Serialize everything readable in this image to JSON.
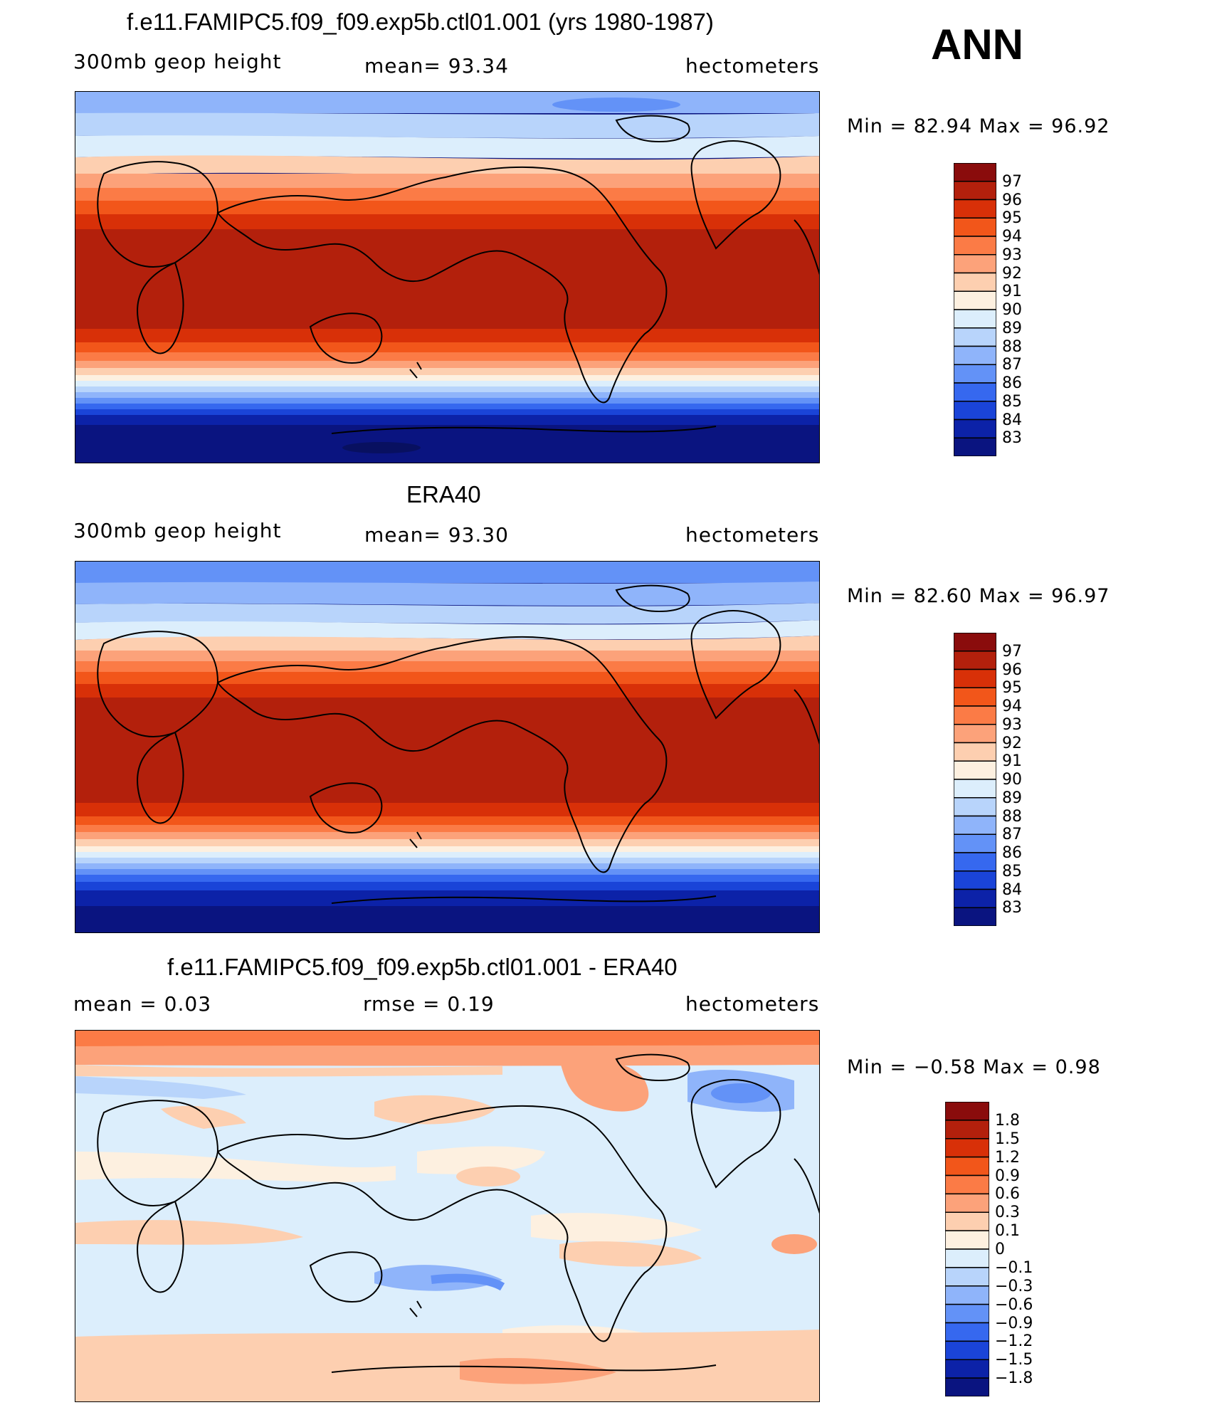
{
  "corner_label": "ANN",
  "panels": [
    {
      "title": "f.e11.FAMIPC5.f09_f09.exp5b.ctl01.001 (yrs 1980-1987)",
      "left_label": "300mb  geop  height",
      "center_label": "mean=   93.34",
      "right_label": "hectometers",
      "minmax": "Min  =    82.94  Max  =    96.92",
      "colorbar": {
        "labels": [
          "97",
          "96",
          "95",
          "94",
          "93",
          "92",
          "91",
          "90",
          "89",
          "88",
          "87",
          "86",
          "85",
          "84",
          "83"
        ],
        "colors": [
          "#8a0c0c",
          "#b3200c",
          "#d83008",
          "#f2561a",
          "#fb7b46",
          "#fca27a",
          "#fdcfb0",
          "#fdf0e0",
          "#dceefc",
          "#b8d4fb",
          "#8fb4fa",
          "#6392f7",
          "#3668ef",
          "#1a44d8",
          "#0c22a8",
          "#0a1480"
        ]
      }
    },
    {
      "title": "ERA40",
      "left_label": "300mb  geop  height",
      "center_label": "mean=   93.30",
      "right_label": "hectometers",
      "minmax": "Min  =    82.60  Max  =    96.97",
      "colorbar": {
        "labels": [
          "97",
          "96",
          "95",
          "94",
          "93",
          "92",
          "91",
          "90",
          "89",
          "88",
          "87",
          "86",
          "85",
          "84",
          "83"
        ],
        "colors": [
          "#8a0c0c",
          "#b3200c",
          "#d83008",
          "#f2561a",
          "#fb7b46",
          "#fca27a",
          "#fdcfb0",
          "#fdf0e0",
          "#dceefc",
          "#b8d4fb",
          "#8fb4fa",
          "#6392f7",
          "#3668ef",
          "#1a44d8",
          "#0c22a8",
          "#0a1480"
        ]
      }
    },
    {
      "title": "f.e11.FAMIPC5.f09_f09.exp5b.ctl01.001 - ERA40",
      "left_label": "mean  =      0.03",
      "center_label": "rmse  =      0.19",
      "right_label": "hectometers",
      "minmax": "Min  =    −0.58  Max  =      0.98",
      "colorbar": {
        "labels": [
          "1.8",
          "1.5",
          "1.2",
          "0.9",
          "0.6",
          "0.3",
          "0.1",
          "0",
          "−0.1",
          "−0.3",
          "−0.6",
          "−0.9",
          "−1.2",
          "−1.5",
          "−1.8"
        ],
        "colors": [
          "#8a0c0c",
          "#b3200c",
          "#d83008",
          "#f2561a",
          "#fb7b46",
          "#fca27a",
          "#fdcfb0",
          "#fdf0e0",
          "#dceefc",
          "#b8d4fb",
          "#8fb4fa",
          "#6392f7",
          "#3668ef",
          "#1a44d8",
          "#0c22a8",
          "#0a1480"
        ]
      }
    }
  ]
}
